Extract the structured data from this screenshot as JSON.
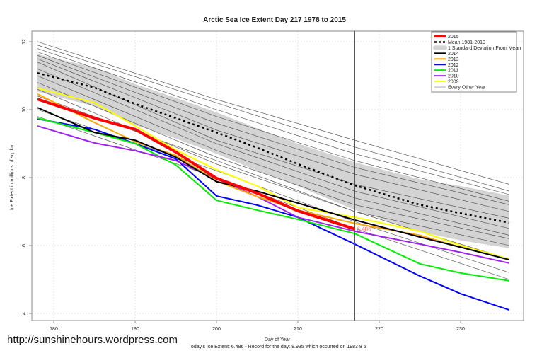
{
  "chart_data": {
    "type": "line",
    "title": "Arctic Sea Ice Extent Day 217 1978 to 2015",
    "xlabel": "Day of Year",
    "ylabel": "Ice Extent in millions of sq. km.",
    "subtitle": "Today's Ice Extent: 6.486  - Record for the day: 8.935 which occurred on 1983 8 5",
    "xlim": [
      177.3,
      237.7
    ],
    "ylim": [
      3.8,
      12.3
    ],
    "x_ticks": [
      180,
      190,
      200,
      210,
      220,
      230
    ],
    "y_ticks": [
      4,
      6,
      8,
      10,
      12
    ],
    "grid": true,
    "legend_position": "top-right",
    "marker_day": 217,
    "end_label": "6.486",
    "days": [
      178,
      185,
      190,
      195,
      200,
      205,
      210,
      217,
      225,
      230,
      236
    ],
    "band": {
      "name": "1 Standard Deviation From Mean",
      "color": "#d3d3d3",
      "upper": [
        11.63,
        11.25,
        10.75,
        10.35,
        9.92,
        9.45,
        9.0,
        8.45,
        7.95,
        7.75,
        7.47
      ],
      "lower": [
        10.53,
        10.1,
        9.55,
        9.15,
        8.7,
        8.2,
        7.75,
        7.05,
        6.4,
        6.15,
        5.92
      ]
    },
    "series": [
      {
        "name": "Mean 1981-2010",
        "color": "#000000",
        "style": "dotted",
        "values": [
          11.08,
          10.65,
          10.17,
          9.75,
          9.33,
          8.88,
          8.4,
          7.77,
          7.2,
          6.95,
          6.67
        ]
      },
      {
        "name": "2014",
        "color": "#000000",
        "values": [
          10.06,
          9.33,
          9.1,
          8.6,
          7.88,
          7.6,
          7.25,
          6.75,
          6.25,
          5.95,
          5.58
        ]
      },
      {
        "name": "2013",
        "color": "#ffa500",
        "values": [
          10.46,
          9.62,
          9.06,
          8.65,
          7.9,
          7.44,
          7.04,
          6.65,
          6.3,
          5.95,
          5.6
        ]
      },
      {
        "name": "2012",
        "color": "#0000ff",
        "values": [
          9.73,
          9.42,
          9.0,
          8.55,
          7.46,
          7.19,
          6.83,
          6.04,
          5.1,
          4.58,
          4.1
        ]
      },
      {
        "name": "2011",
        "color": "#00ee00",
        "values": [
          9.75,
          9.33,
          9.0,
          8.37,
          7.33,
          7.04,
          6.77,
          6.35,
          5.46,
          5.19,
          4.96
        ]
      },
      {
        "name": "2010",
        "color": "#a020f0",
        "values": [
          9.52,
          9.02,
          8.79,
          8.5,
          7.96,
          7.44,
          6.83,
          6.42,
          6.04,
          5.8,
          5.48
        ]
      },
      {
        "name": "2009",
        "color": "#ffff00",
        "values": [
          10.63,
          10.2,
          9.52,
          8.81,
          8.23,
          7.75,
          7.12,
          6.83,
          6.42,
          6.0,
          5.6
        ]
      },
      {
        "name": "2015",
        "color": "#ff0000",
        "values": [
          10.31,
          9.75,
          9.42,
          8.75,
          7.98,
          7.54,
          7.02,
          6.486,
          null,
          null,
          null
        ]
      }
    ],
    "other_years": {
      "name": "Every Other Year",
      "color": "#444444",
      "days": [
        178,
        200,
        217,
        236
      ],
      "lines": [
        [
          12.0,
          10.3,
          9.1,
          7.8
        ],
        [
          11.9,
          10.2,
          8.9,
          7.6
        ],
        [
          11.8,
          10.0,
          8.7,
          7.5
        ],
        [
          11.7,
          9.8,
          8.5,
          7.3
        ],
        [
          11.6,
          9.6,
          8.3,
          7.2
        ],
        [
          11.5,
          9.4,
          8.1,
          7.0
        ],
        [
          11.4,
          9.1,
          7.8,
          6.8
        ],
        [
          11.2,
          9.0,
          7.6,
          6.5
        ],
        [
          11.0,
          8.8,
          7.4,
          6.3
        ],
        [
          10.8,
          8.6,
          7.2,
          6.2
        ],
        [
          10.6,
          8.4,
          7.0,
          6.0
        ],
        [
          10.4,
          8.5,
          7.0,
          5.6
        ],
        [
          10.0,
          8.2,
          6.7,
          5.2
        ],
        [
          9.8,
          8.0,
          6.5,
          5.0
        ]
      ]
    },
    "legend": [
      "2015",
      "Mean 1981-2010",
      "1 Standard Deviation From Mean",
      "2014",
      "2013",
      "2012",
      "2011",
      "2010",
      "2009",
      "Every Other Year"
    ]
  },
  "footer": {
    "site": "http://sunshinehours.wordpress.com"
  }
}
